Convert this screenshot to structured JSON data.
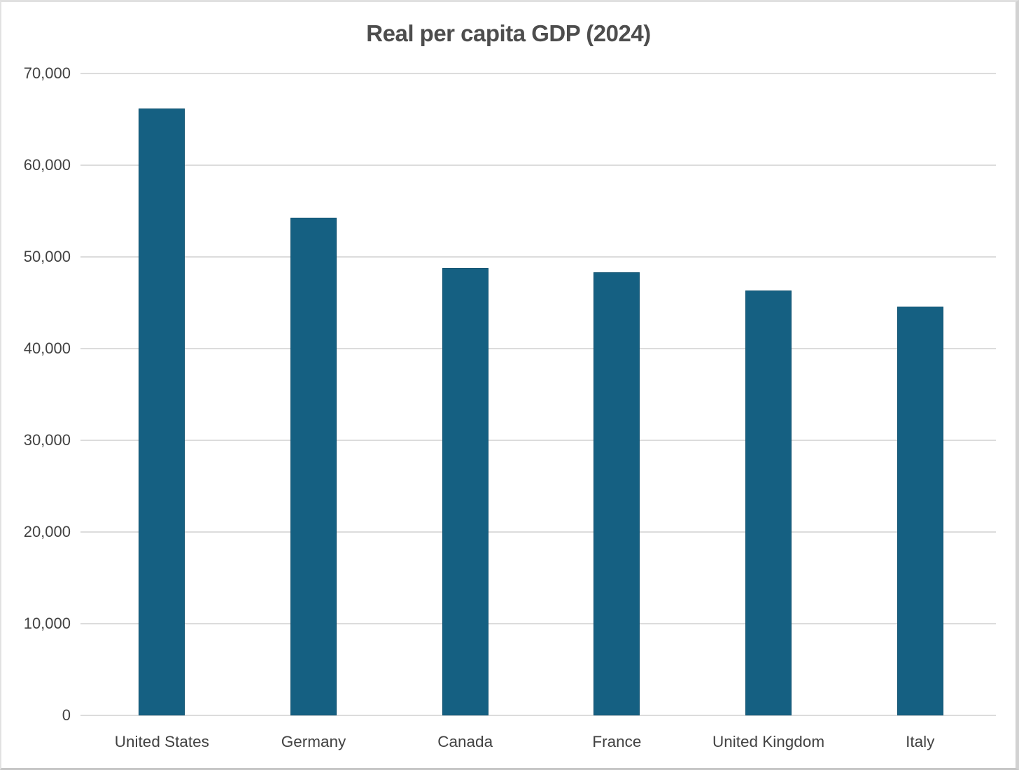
{
  "chart_data": {
    "type": "bar",
    "title": "Real per capita GDP (2024)",
    "categories": [
      "United States",
      "Germany",
      "Canada",
      "France",
      "United Kingdom",
      "Italy"
    ],
    "values": [
      66200,
      54300,
      48800,
      48300,
      46300,
      44600
    ],
    "series": [
      {
        "name": "Real per capita GDP (2024)",
        "values": [
          66200,
          54300,
          48800,
          48300,
          46300,
          44600
        ]
      }
    ],
    "xlabel": "",
    "ylabel": "",
    "ylim": [
      0,
      70000
    ],
    "ytick_step": 10000,
    "ytick_labels": [
      "0",
      "10,000",
      "20,000",
      "30,000",
      "40,000",
      "50,000",
      "60,000",
      "70,000"
    ],
    "grid": true,
    "legend": "none",
    "colors": {
      "bar": "#156082",
      "gridline": "#dcdcdc",
      "title": "#4d4d4d",
      "axis_labels": "#424242",
      "background": "#ffffff",
      "frame_border": "#d9d9d9"
    }
  }
}
